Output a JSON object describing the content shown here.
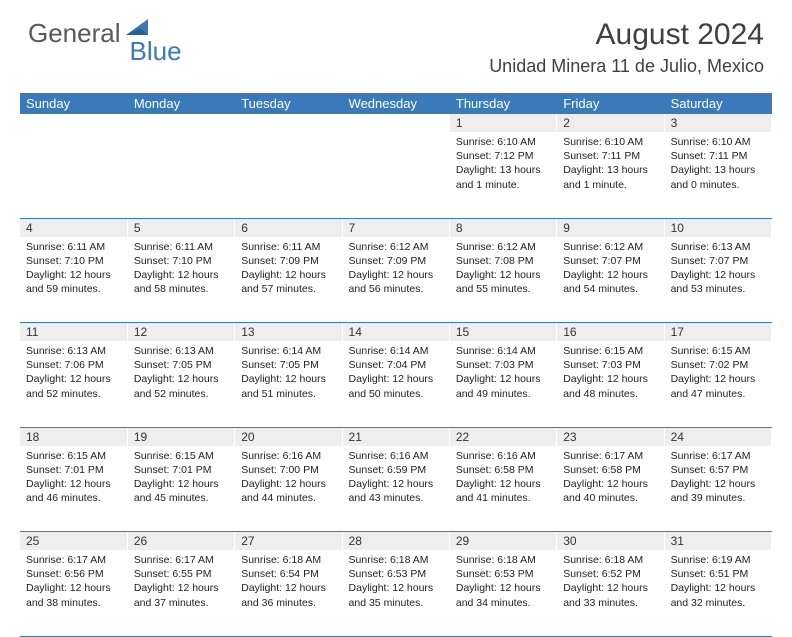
{
  "brand": {
    "part1": "General",
    "part2": "Blue"
  },
  "title": "August 2024",
  "location": "Unidad Minera 11 de Julio, Mexico",
  "colors": {
    "header_bg": "#3a7ab8",
    "daynum_bg": "#eeeeee",
    "text": "#404040",
    "logo_gray": "#595959",
    "logo_blue": "#3a7ab8"
  },
  "weekdays": [
    "Sunday",
    "Monday",
    "Tuesday",
    "Wednesday",
    "Thursday",
    "Friday",
    "Saturday"
  ],
  "weeks": [
    [
      null,
      null,
      null,
      null,
      {
        "n": "1",
        "sr": "6:10 AM",
        "ss": "7:12 PM",
        "dl": "13 hours and 1 minute."
      },
      {
        "n": "2",
        "sr": "6:10 AM",
        "ss": "7:11 PM",
        "dl": "13 hours and 1 minute."
      },
      {
        "n": "3",
        "sr": "6:10 AM",
        "ss": "7:11 PM",
        "dl": "13 hours and 0 minutes."
      }
    ],
    [
      {
        "n": "4",
        "sr": "6:11 AM",
        "ss": "7:10 PM",
        "dl": "12 hours and 59 minutes."
      },
      {
        "n": "5",
        "sr": "6:11 AM",
        "ss": "7:10 PM",
        "dl": "12 hours and 58 minutes."
      },
      {
        "n": "6",
        "sr": "6:11 AM",
        "ss": "7:09 PM",
        "dl": "12 hours and 57 minutes."
      },
      {
        "n": "7",
        "sr": "6:12 AM",
        "ss": "7:09 PM",
        "dl": "12 hours and 56 minutes."
      },
      {
        "n": "8",
        "sr": "6:12 AM",
        "ss": "7:08 PM",
        "dl": "12 hours and 55 minutes."
      },
      {
        "n": "9",
        "sr": "6:12 AM",
        "ss": "7:07 PM",
        "dl": "12 hours and 54 minutes."
      },
      {
        "n": "10",
        "sr": "6:13 AM",
        "ss": "7:07 PM",
        "dl": "12 hours and 53 minutes."
      }
    ],
    [
      {
        "n": "11",
        "sr": "6:13 AM",
        "ss": "7:06 PM",
        "dl": "12 hours and 52 minutes."
      },
      {
        "n": "12",
        "sr": "6:13 AM",
        "ss": "7:05 PM",
        "dl": "12 hours and 52 minutes."
      },
      {
        "n": "13",
        "sr": "6:14 AM",
        "ss": "7:05 PM",
        "dl": "12 hours and 51 minutes."
      },
      {
        "n": "14",
        "sr": "6:14 AM",
        "ss": "7:04 PM",
        "dl": "12 hours and 50 minutes."
      },
      {
        "n": "15",
        "sr": "6:14 AM",
        "ss": "7:03 PM",
        "dl": "12 hours and 49 minutes."
      },
      {
        "n": "16",
        "sr": "6:15 AM",
        "ss": "7:03 PM",
        "dl": "12 hours and 48 minutes."
      },
      {
        "n": "17",
        "sr": "6:15 AM",
        "ss": "7:02 PM",
        "dl": "12 hours and 47 minutes."
      }
    ],
    [
      {
        "n": "18",
        "sr": "6:15 AM",
        "ss": "7:01 PM",
        "dl": "12 hours and 46 minutes."
      },
      {
        "n": "19",
        "sr": "6:15 AM",
        "ss": "7:01 PM",
        "dl": "12 hours and 45 minutes."
      },
      {
        "n": "20",
        "sr": "6:16 AM",
        "ss": "7:00 PM",
        "dl": "12 hours and 44 minutes."
      },
      {
        "n": "21",
        "sr": "6:16 AM",
        "ss": "6:59 PM",
        "dl": "12 hours and 43 minutes."
      },
      {
        "n": "22",
        "sr": "6:16 AM",
        "ss": "6:58 PM",
        "dl": "12 hours and 41 minutes."
      },
      {
        "n": "23",
        "sr": "6:17 AM",
        "ss": "6:58 PM",
        "dl": "12 hours and 40 minutes."
      },
      {
        "n": "24",
        "sr": "6:17 AM",
        "ss": "6:57 PM",
        "dl": "12 hours and 39 minutes."
      }
    ],
    [
      {
        "n": "25",
        "sr": "6:17 AM",
        "ss": "6:56 PM",
        "dl": "12 hours and 38 minutes."
      },
      {
        "n": "26",
        "sr": "6:17 AM",
        "ss": "6:55 PM",
        "dl": "12 hours and 37 minutes."
      },
      {
        "n": "27",
        "sr": "6:18 AM",
        "ss": "6:54 PM",
        "dl": "12 hours and 36 minutes."
      },
      {
        "n": "28",
        "sr": "6:18 AM",
        "ss": "6:53 PM",
        "dl": "12 hours and 35 minutes."
      },
      {
        "n": "29",
        "sr": "6:18 AM",
        "ss": "6:53 PM",
        "dl": "12 hours and 34 minutes."
      },
      {
        "n": "30",
        "sr": "6:18 AM",
        "ss": "6:52 PM",
        "dl": "12 hours and 33 minutes."
      },
      {
        "n": "31",
        "sr": "6:19 AM",
        "ss": "6:51 PM",
        "dl": "12 hours and 32 minutes."
      }
    ]
  ],
  "labels": {
    "sunrise": "Sunrise:",
    "sunset": "Sunset:",
    "daylight": "Daylight:"
  }
}
